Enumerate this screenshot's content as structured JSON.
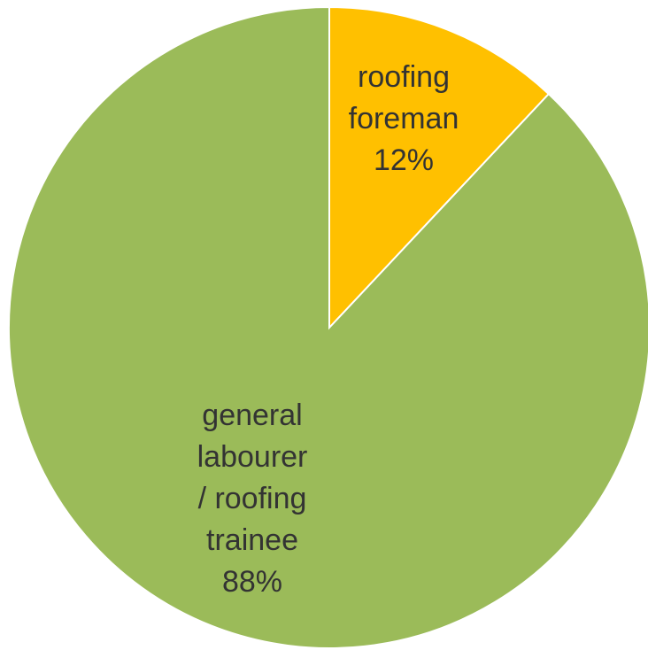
{
  "chart_data": {
    "type": "pie",
    "title": "",
    "start_angle_deg": 0,
    "direction": "clockwise",
    "slice_border_color": "#ffffff",
    "label_color": "#333333",
    "slices": [
      {
        "label_lines": [
          "roofing",
          "foreman"
        ],
        "value": 12,
        "percent_label": "12%",
        "color": "#FFC000"
      },
      {
        "label_lines": [
          "general",
          "labourer",
          "/ roofing",
          "trainee"
        ],
        "value": 88,
        "percent_label": "88%",
        "color": "#9BBB59"
      }
    ]
  }
}
